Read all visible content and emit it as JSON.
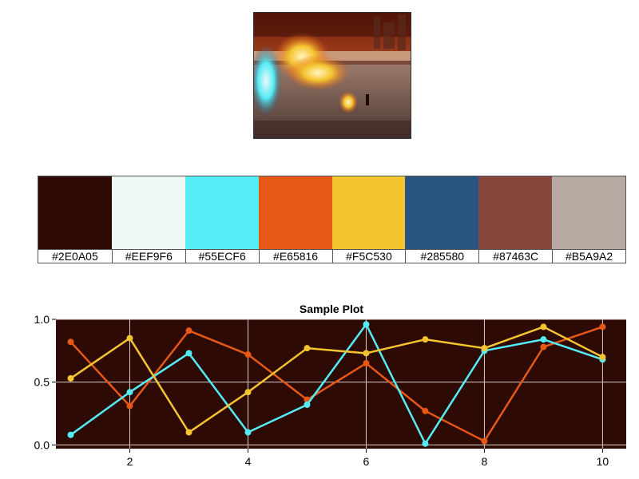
{
  "palette": {
    "swatches": [
      {
        "hex": "#2E0A05",
        "label": "#2E0A05"
      },
      {
        "hex": "#EEF9F6",
        "label": "#EEF9F6"
      },
      {
        "hex": "#55ECF6",
        "label": "#55ECF6"
      },
      {
        "hex": "#E65816",
        "label": "#E65816"
      },
      {
        "hex": "#F5C530",
        "label": "#F5C530"
      },
      {
        "hex": "#285580",
        "label": "#285580"
      },
      {
        "hex": "#87463C",
        "label": "#87463C"
      },
      {
        "hex": "#B5A9A2",
        "label": "#B5A9A2"
      }
    ]
  },
  "chart_data": {
    "type": "line",
    "title": "Sample Plot",
    "xlabel": "",
    "ylabel": "",
    "x": [
      1,
      2,
      3,
      4,
      5,
      6,
      7,
      8,
      9,
      10
    ],
    "xlim": [
      0.75,
      10.4
    ],
    "ylim": [
      -0.03,
      1.0
    ],
    "xticks": [
      2,
      4,
      6,
      8,
      10
    ],
    "yticks": [
      0.0,
      0.5,
      1.0
    ],
    "ytick_labels": [
      "0.0",
      "0.5",
      "1.0"
    ],
    "grid": true,
    "background": "#2E0A05",
    "series": [
      {
        "color": "#E65816",
        "values": [
          0.82,
          0.31,
          0.91,
          0.72,
          0.36,
          0.65,
          0.27,
          0.03,
          0.78,
          0.94
        ]
      },
      {
        "color": "#55ECF6",
        "values": [
          0.08,
          0.42,
          0.73,
          0.1,
          0.32,
          0.96,
          0.01,
          0.75,
          0.84,
          0.68
        ]
      },
      {
        "color": "#F5C530",
        "values": [
          0.53,
          0.85,
          0.1,
          0.42,
          0.77,
          0.73,
          0.84,
          0.77,
          0.94,
          0.7
        ]
      }
    ]
  }
}
